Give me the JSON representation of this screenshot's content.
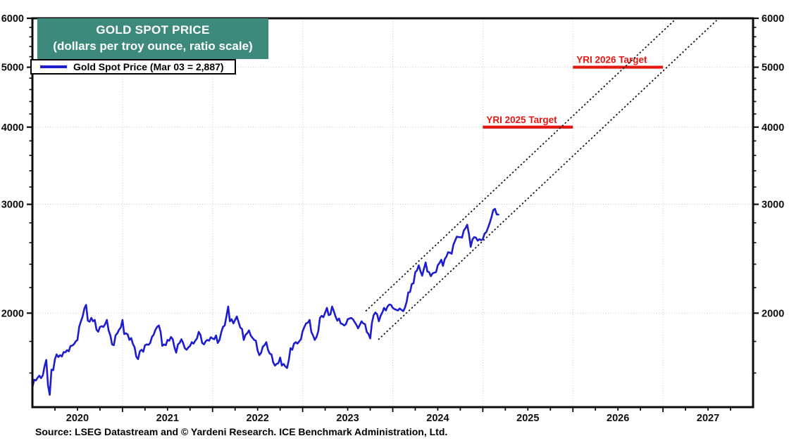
{
  "header": {
    "title_line1": "GOLD SPOT PRICE",
    "title_line2": "(dollars per troy ounce, ratio scale)"
  },
  "legend": {
    "label": "Gold Spot Price (Mar 03 = 2,887)"
  },
  "footer": {
    "source": "Source: LSEG Datastream and © Yardeni Research. ICE Benchmark Administration, Ltd."
  },
  "colors": {
    "title_bg": "#3d8a7d",
    "price_line": "#1d1dd0",
    "target_red": "#e41712",
    "grid": "#c2c2c2",
    "axis": "#0d0d0d"
  },
  "chart_data": {
    "type": "line",
    "title": "GOLD SPOT PRICE (dollars per troy ounce, ratio scale)",
    "xlabel": "",
    "ylabel": "dollars per troy ounce",
    "y_scale": "log",
    "y_range": [
      1409,
      6000
    ],
    "x_range": [
      2020.0,
      2028.0
    ],
    "grid": "dotted",
    "y_ticks_labeled": [
      2000,
      3000,
      4000,
      5000,
      6000
    ],
    "y_minor_tick_step": 200,
    "y_minor_tick_min": 1600,
    "y_minor_tick_max": 5800,
    "x_tick_step_years": 0.25,
    "x_year_labels": [
      "2020",
      "2021",
      "2022",
      "2023",
      "2024",
      "2025",
      "2026",
      "2027"
    ],
    "series": [
      {
        "name": "Gold Spot Price",
        "start": 2020.0,
        "step": 0.019230769,
        "values": [
          1517,
          1560,
          1556,
          1572,
          1584,
          1570,
          1586,
          1640,
          1680,
          1530,
          1475,
          1620,
          1617,
          1685,
          1715,
          1698,
          1710,
          1702,
          1730,
          1728,
          1742,
          1735,
          1770,
          1772,
          1782,
          1800,
          1810,
          1900,
          1940,
          1975,
          2035,
          2063,
          1945,
          1937,
          1965,
          1940,
          1950,
          1880,
          1866,
          1900,
          1905,
          1900,
          1920,
          1950,
          1875,
          1840,
          1780,
          1775,
          1840,
          1855,
          1880,
          1895,
          1950,
          1850,
          1855,
          1847,
          1810,
          1823,
          1784,
          1760,
          1700,
          1685,
          1735,
          1745,
          1732,
          1775,
          1780,
          1777,
          1790,
          1830,
          1845,
          1880,
          1900,
          1910,
          1865,
          1770,
          1780,
          1775,
          1810,
          1805,
          1830,
          1815,
          1762,
          1726,
          1780,
          1790,
          1815,
          1790,
          1755,
          1745,
          1760,
          1770,
          1795,
          1785,
          1805,
          1820,
          1865,
          1845,
          1790,
          1780,
          1800,
          1810,
          1805,
          1828,
          1820,
          1815,
          1840,
          1790,
          1810,
          1860,
          1900,
          1910,
          1975,
          2050,
          1940,
          1955,
          1925,
          1950,
          1975,
          1935,
          1895,
          1885,
          1810,
          1845,
          1855,
          1875,
          1840,
          1825,
          1810,
          1805,
          1740,
          1710,
          1725,
          1765,
          1775,
          1795,
          1745,
          1720,
          1715,
          1665,
          1645,
          1655,
          1660,
          1695,
          1645,
          1655,
          1640,
          1630,
          1680,
          1755,
          1745,
          1785,
          1795,
          1785,
          1800,
          1815,
          1870,
          1900,
          1925,
          1930,
          1950,
          1865,
          1840,
          1810,
          1830,
          1870,
          1965,
          1980,
          1970,
          2005,
          2040,
          1985,
          1990,
          2050,
          2015,
          1975,
          1945,
          1960,
          1925,
          1920,
          1910,
          1920,
          1955,
          1960,
          1965,
          1955,
          1935,
          1915,
          1890,
          1915,
          1940,
          1925,
          1920,
          1865,
          1850,
          1820,
          1930,
          1985,
          2005,
          1990,
          1940,
          1980,
          2005,
          2040,
          2020,
          2050,
          2065,
          2063,
          2040,
          2030,
          2025,
          2020,
          2035,
          2025,
          2015,
          2040,
          2085,
          2160,
          2165,
          2230,
          2235,
          2330,
          2345,
          2390,
          2340,
          2300,
          2360,
          2415,
          2335,
          2330,
          2295,
          2320,
          2325,
          2330,
          2390,
          2410,
          2440,
          2385,
          2445,
          2470,
          2510,
          2505,
          2495,
          2580,
          2620,
          2660,
          2655,
          2655,
          2650,
          2720,
          2745,
          2780,
          2685,
          2560,
          2630,
          2655,
          2650,
          2620,
          2635,
          2625,
          2635,
          2690,
          2705,
          2750,
          2800,
          2860,
          2935,
          2950,
          2890,
          2887
        ]
      }
    ],
    "targets": [
      {
        "label": "YRI 2025 Target",
        "value": 4000,
        "t_start": 2025.0,
        "t_end": 2026.0
      },
      {
        "label": "YRI 2026 Target",
        "value": 5000,
        "t_start": 2026.0,
        "t_end": 2027.0
      }
    ],
    "trend_channel": {
      "style": "dotted",
      "lines": [
        {
          "t1": 2023.7,
          "v1": 2015,
          "t2": 2027.15,
          "v2": 6000
        },
        {
          "t1": 2023.84,
          "v1": 1812,
          "t2": 2027.62,
          "v2": 6000
        }
      ]
    },
    "legend_position": "top-left",
    "last_point_label": "Mar 03 = 2,887"
  }
}
